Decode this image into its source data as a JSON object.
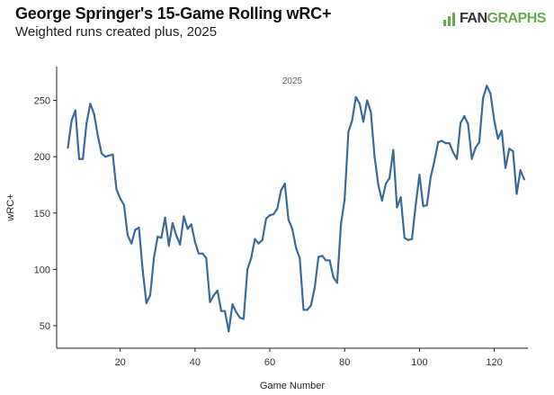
{
  "header": {
    "title": "George Springer's 15-Game Rolling wRC+",
    "subtitle": "Weighted runs created plus, 2025",
    "logo_text_a": "FAN",
    "logo_text_b": "GRAPHS"
  },
  "chart_data": {
    "type": "line",
    "title": "George Springer's 15-Game Rolling wRC+",
    "subtitle": "Weighted runs created plus, 2025",
    "xlabel": "Game Number",
    "ylabel": "wRC+",
    "annotation": "2025",
    "xlim": [
      3,
      129
    ],
    "ylim": [
      30,
      280
    ],
    "xticks": [
      20,
      40,
      60,
      80,
      100,
      120
    ],
    "yticks": [
      50,
      100,
      150,
      200,
      250
    ],
    "grid": false,
    "line_color": "#3a6a9a",
    "series": [
      {
        "x": [
          6,
          7,
          8,
          9,
          10,
          11,
          12,
          13,
          14,
          15,
          16,
          17,
          18,
          19,
          20,
          21,
          22,
          23,
          24,
          25,
          26,
          27,
          28,
          29,
          30,
          31,
          32,
          33,
          34,
          35,
          36,
          37,
          38,
          39,
          40,
          41,
          42,
          43,
          44,
          45,
          46,
          47,
          48,
          49,
          50,
          51,
          52,
          53,
          54,
          55,
          56,
          57,
          58,
          59,
          60,
          61,
          62,
          63,
          64,
          65,
          66,
          67,
          68,
          69,
          70,
          71,
          72,
          73,
          74,
          75,
          76,
          77,
          78,
          79,
          80,
          81,
          82,
          83,
          84,
          85,
          86,
          87,
          88,
          89,
          90,
          91,
          92,
          93,
          94,
          95,
          96,
          97,
          98,
          99,
          100,
          101,
          102,
          103,
          104,
          105,
          106,
          107,
          108,
          109,
          110,
          111,
          112,
          113,
          114,
          115,
          116,
          117,
          118,
          119,
          120,
          121,
          122,
          123,
          124,
          125,
          126,
          127,
          128
        ],
        "values": [
          208,
          232,
          241,
          198,
          198,
          230,
          247,
          238,
          219,
          203,
          200,
          201,
          202,
          171,
          163,
          157,
          130,
          123,
          135,
          137,
          99,
          70,
          77,
          110,
          129,
          128,
          146,
          121,
          141,
          130,
          122,
          147,
          136,
          140,
          124,
          114,
          114,
          110,
          71,
          77,
          81,
          63,
          63,
          45,
          69,
          62,
          57,
          56,
          100,
          110,
          127,
          123,
          126,
          145,
          148,
          149,
          154,
          170,
          176,
          144,
          136,
          119,
          110,
          64,
          64,
          68,
          84,
          111,
          112,
          108,
          108,
          93,
          88,
          140,
          162,
          222,
          232,
          253,
          247,
          231,
          250,
          240,
          200,
          175,
          161,
          176,
          181,
          206,
          155,
          164,
          128,
          126,
          127,
          157,
          184,
          156,
          157,
          182,
          196,
          213,
          214,
          212,
          212,
          204,
          198,
          230,
          236,
          229,
          198,
          208,
          213,
          252,
          263,
          256,
          232,
          216,
          223,
          190,
          207,
          205,
          167,
          188,
          180
        ]
      }
    ]
  }
}
